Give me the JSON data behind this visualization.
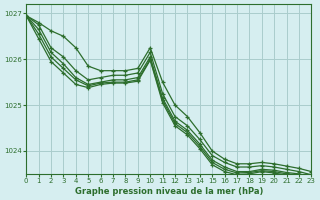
{
  "background_color": "#d6eef0",
  "plot_bg_color": "#d6eef0",
  "grid_color": "#aacccc",
  "line_color": "#2d6e2d",
  "xlabel": "Graphe pression niveau de la mer (hPa)",
  "xlim": [
    0,
    23
  ],
  "ylim": [
    1023.5,
    1027.2
  ],
  "yticks": [
    1024,
    1025,
    1026,
    1027
  ],
  "xticks": [
    0,
    1,
    2,
    3,
    4,
    5,
    6,
    7,
    8,
    9,
    10,
    11,
    12,
    13,
    14,
    15,
    16,
    17,
    18,
    19,
    20,
    21,
    22,
    23
  ],
  "series": [
    [
      1026.95,
      1026.75,
      1026.25,
      1026.05,
      1025.75,
      1025.55,
      1025.6,
      1025.65,
      1025.65,
      1025.7,
      1026.15,
      1025.25,
      1024.75,
      1024.55,
      1024.25,
      1023.9,
      1023.75,
      1023.65,
      1023.65,
      1023.68,
      1023.65,
      1023.6,
      1023.55,
      1023.48
    ],
    [
      1026.95,
      1026.65,
      1026.15,
      1025.9,
      1025.6,
      1025.45,
      1025.5,
      1025.55,
      1025.55,
      1025.6,
      1026.05,
      1025.15,
      1024.65,
      1024.45,
      1024.15,
      1023.8,
      1023.65,
      1023.55,
      1023.55,
      1023.6,
      1023.58,
      1023.53,
      1023.5,
      1023.43
    ],
    [
      1026.95,
      1026.55,
      1026.05,
      1025.8,
      1025.55,
      1025.42,
      1025.48,
      1025.5,
      1025.5,
      1025.55,
      1026.0,
      1025.1,
      1024.6,
      1024.4,
      1024.1,
      1023.75,
      1023.6,
      1023.52,
      1023.53,
      1023.57,
      1023.55,
      1023.5,
      1023.47,
      1023.4
    ],
    [
      1026.95,
      1026.45,
      1025.95,
      1025.7,
      1025.45,
      1025.38,
      1025.45,
      1025.48,
      1025.48,
      1025.52,
      1025.98,
      1025.05,
      1024.55,
      1024.35,
      1024.05,
      1023.7,
      1023.55,
      1023.48,
      1023.5,
      1023.55,
      1023.52,
      1023.47,
      1023.44,
      1023.37
    ]
  ],
  "series_top": [
    1026.95,
    1026.8,
    1026.62,
    1026.5,
    1026.25,
    1025.85,
    1025.75,
    1025.75,
    1025.75,
    1025.8,
    1026.25,
    1025.5,
    1025.0,
    1024.75,
    1024.4,
    1024.0,
    1023.82,
    1023.72,
    1023.72,
    1023.75,
    1023.72,
    1023.67,
    1023.62,
    1023.55
  ]
}
